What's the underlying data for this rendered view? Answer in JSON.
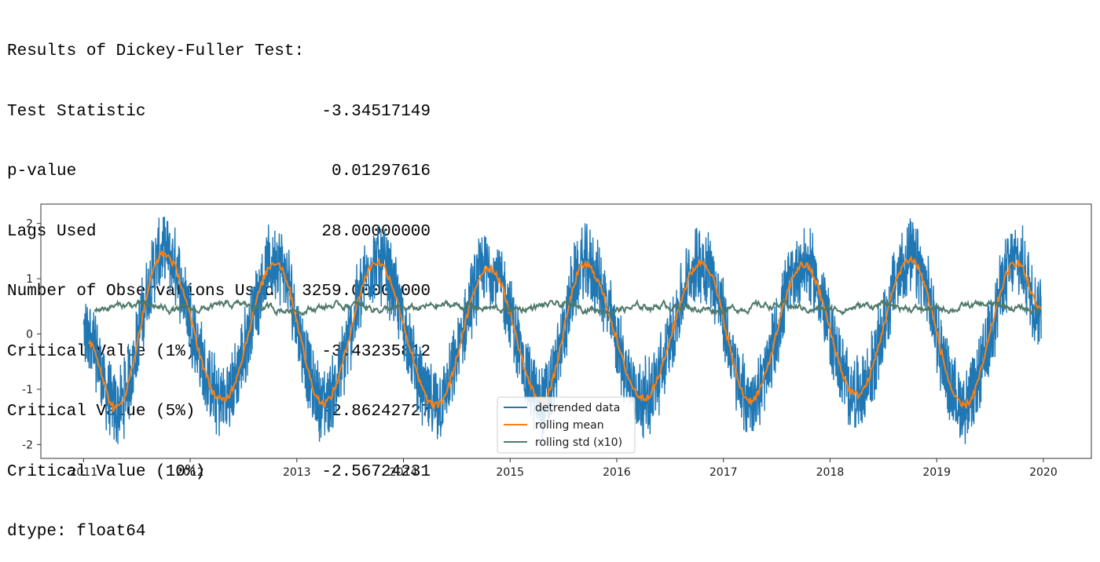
{
  "output": {
    "header": "Results of Dickey-Fuller Test:",
    "rows": [
      {
        "label": "Test Statistic",
        "value": "-3.34517149"
      },
      {
        "label": "p-value",
        "value": "0.01297616"
      },
      {
        "label": "Lags Used",
        "value": "28.00000000"
      },
      {
        "label": "Number of Observations Used",
        "value": "3259.00000000"
      },
      {
        "label": "Critical Value (1%)",
        "value": "-3.43235812"
      },
      {
        "label": "Critical Value (5%)",
        "value": "-2.86242727"
      },
      {
        "label": "Critical Value (10%)",
        "value": "-2.56724231"
      }
    ],
    "dtype": "dtype: float64"
  },
  "chart_data": {
    "type": "line",
    "title": "",
    "xlabel": "",
    "ylabel": "",
    "x_ticks": [
      "2011",
      "2012",
      "2013",
      "2014",
      "2015",
      "2016",
      "2017",
      "2018",
      "2019",
      "2020"
    ],
    "y_ticks": [
      "-2",
      "-1",
      "0",
      "1",
      "2"
    ],
    "xlim": [
      2010.6,
      2020.45
    ],
    "ylim": [
      -2.25,
      2.35
    ],
    "legend_position": "bottom-center",
    "series": [
      {
        "name": "detrended data",
        "color": "#1f77b4",
        "x_start": 2011.0,
        "x_end": 2019.98,
        "approx_peaks": [
          2.0,
          2.05,
          2.05,
          2.05,
          2.05,
          2.0,
          2.1,
          2.15,
          2.1
        ],
        "approx_troughs": [
          -2.0,
          -1.85,
          -1.95,
          -1.95,
          -1.85,
          -1.8,
          -1.9,
          -1.95,
          -2.05
        ]
      },
      {
        "name": "rolling mean",
        "color": "#ff7f0e",
        "x": [
          2011.05,
          2011.3,
          2011.75,
          2012.3,
          2012.8,
          2013.25,
          2013.75,
          2014.3,
          2014.8,
          2015.3,
          2015.7,
          2016.25,
          2016.8,
          2017.25,
          2017.75,
          2018.25,
          2018.75,
          2019.25,
          2019.75,
          2019.98
        ],
        "y": [
          -0.15,
          -1.35,
          1.45,
          -1.2,
          1.3,
          -1.25,
          1.3,
          -1.3,
          1.2,
          -1.2,
          1.25,
          -1.15,
          1.3,
          -1.2,
          1.25,
          -1.1,
          1.35,
          -1.3,
          1.3,
          0.45
        ]
      },
      {
        "name": "rolling std (x10)",
        "color": "#4f7a6a",
        "x": [
          2011.1,
          2019.98
        ],
        "mean": 0.48,
        "range": [
          0.35,
          0.6
        ]
      }
    ]
  }
}
